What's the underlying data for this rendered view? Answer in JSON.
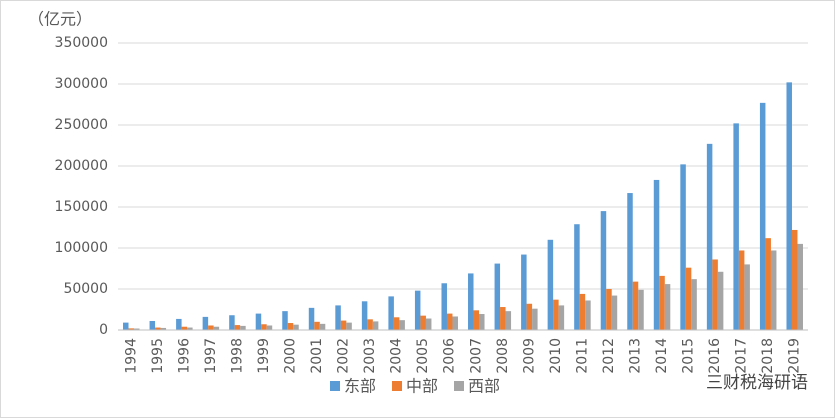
{
  "chart_data": {
    "type": "bar",
    "unit_label": "（亿元）",
    "categories": [
      "1994",
      "1995",
      "1996",
      "1997",
      "1998",
      "1999",
      "2000",
      "2001",
      "2002",
      "2003",
      "2004",
      "2005",
      "2006",
      "2007",
      "2008",
      "2009",
      "2010",
      "2011",
      "2012",
      "2013",
      "2014",
      "2015",
      "2016",
      "2017",
      "2018",
      "2019"
    ],
    "series": [
      {
        "name": "东部",
        "color": "#5b9bd5",
        "values": [
          9000,
          11000,
          13500,
          16000,
          18000,
          20000,
          23000,
          27000,
          30000,
          35000,
          41000,
          48000,
          57000,
          69000,
          81000,
          92000,
          110000,
          129000,
          145000,
          167000,
          183000,
          202000,
          227000,
          252000,
          277000,
          302000
        ]
      },
      {
        "name": "中部",
        "color": "#ed7d31",
        "values": [
          2000,
          3000,
          4000,
          5500,
          6000,
          7000,
          8500,
          10000,
          11500,
          13000,
          15500,
          17500,
          20000,
          24000,
          28000,
          32000,
          37000,
          44000,
          50000,
          59000,
          66000,
          76000,
          86000,
          97000,
          112000,
          122000
        ]
      },
      {
        "name": "西部",
        "color": "#a5a5a5",
        "values": [
          1800,
          2500,
          3000,
          4000,
          5000,
          5500,
          6500,
          7500,
          9000,
          10500,
          12000,
          14000,
          16500,
          19500,
          23000,
          26000,
          30000,
          36000,
          42000,
          49000,
          56000,
          62000,
          71000,
          80000,
          97000,
          105000
        ]
      }
    ],
    "ylim": [
      0,
      350000
    ],
    "yticks": [
      0,
      50000,
      100000,
      150000,
      200000,
      250000,
      300000,
      350000
    ],
    "grid": true,
    "legend": "bottom",
    "watermark": "三财税海研语"
  }
}
